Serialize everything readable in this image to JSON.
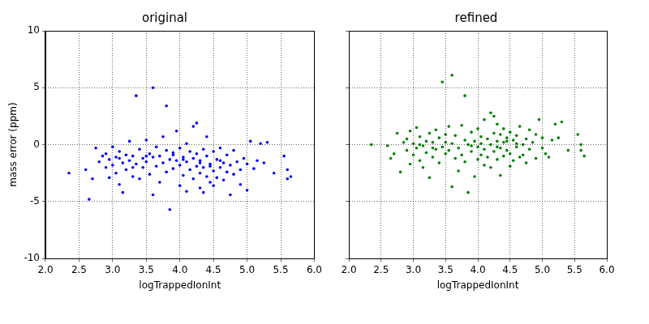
{
  "chart_data": [
    {
      "type": "scatter",
      "title": "original",
      "x_label": "logTrappedIonInt",
      "y_label": "mass error (ppm)",
      "color": "#0000ff",
      "marker": "circle",
      "grid": true,
      "xlim": [
        2,
        6
      ],
      "xticks": [
        {
          "value": 2,
          "label": "2.0"
        },
        {
          "value": 2.5,
          "label": "2.5"
        },
        {
          "value": 3,
          "label": "3.0"
        },
        {
          "value": 3.5,
          "label": "3.5"
        },
        {
          "value": 4,
          "label": "4.0"
        },
        {
          "value": 4.5,
          "label": "4.5"
        },
        {
          "value": 5,
          "label": "5.0"
        },
        {
          "value": 5.5,
          "label": "5.5"
        },
        {
          "value": 6,
          "label": "6.0"
        }
      ],
      "ylim": [
        -10,
        10
      ],
      "yticks": [
        -10,
        -5,
        0,
        5,
        10
      ],
      "x": [
        2.35,
        2.6,
        2.65,
        2.7,
        2.75,
        2.8,
        2.85,
        2.9,
        2.9,
        2.95,
        2.95,
        3.0,
        3.0,
        3.05,
        3.05,
        3.1,
        3.1,
        3.15,
        3.15,
        3.2,
        3.2,
        3.25,
        3.25,
        3.3,
        3.3,
        3.35,
        3.35,
        3.4,
        3.4,
        3.45,
        3.45,
        3.5,
        3.5,
        3.55,
        3.55,
        3.6,
        3.6,
        3.6,
        3.65,
        3.65,
        3.7,
        3.7,
        3.75,
        3.75,
        3.8,
        3.8,
        3.8,
        3.85,
        3.85,
        3.9,
        3.9,
        3.95,
        3.95,
        4.0,
        4.0,
        4.0,
        4.05,
        4.05,
        4.1,
        4.1,
        4.1,
        4.15,
        4.15,
        4.2,
        4.2,
        4.2,
        4.25,
        4.25,
        4.25,
        4.3,
        4.3,
        4.3,
        4.35,
        4.35,
        4.35,
        4.4,
        4.4,
        4.4,
        4.45,
        4.45,
        4.5,
        4.5,
        4.5,
        4.55,
        4.55,
        4.6,
        4.6,
        4.65,
        4.65,
        4.7,
        4.7,
        4.75,
        4.75,
        4.8,
        4.8,
        4.85,
        4.9,
        4.9,
        4.95,
        5.0,
        5.0,
        5.05,
        5.1,
        5.15,
        5.2,
        5.25,
        5.3,
        5.4,
        5.55,
        5.6,
        5.6,
        5.65,
        3.1,
        3.5,
        3.9,
        4.05,
        4.3,
        4.45,
        4.6,
        3.3
      ],
      "values": [
        -2.5,
        -2.2,
        -4.8,
        -3.0,
        -0.3,
        -1.5,
        -1.0,
        -2.0,
        -0.8,
        -2.9,
        -1.3,
        -1.8,
        -0.2,
        -2.5,
        -1.1,
        -3.5,
        -0.6,
        -1.6,
        -4.2,
        -0.9,
        -2.2,
        -1.4,
        0.3,
        -2.8,
        -1.0,
        4.3,
        -1.7,
        -0.4,
        -3.0,
        -1.2,
        -2.0,
        0.4,
        -1.5,
        -0.8,
        -2.6,
        5.0,
        -1.1,
        -4.4,
        -0.2,
        -1.9,
        -1.0,
        -3.3,
        0.7,
        -1.6,
        3.4,
        -0.5,
        -2.4,
        -5.7,
        -1.3,
        -0.9,
        -2.1,
        1.2,
        -1.4,
        -0.3,
        -1.8,
        -3.6,
        -1.1,
        -2.7,
        0.1,
        -1.5,
        -4.1,
        -0.6,
        -2.2,
        1.6,
        -1.2,
        -3.0,
        -0.8,
        -1.9,
        1.9,
        -2.5,
        -1.4,
        -3.8,
        -0.4,
        -2.0,
        -4.2,
        -1.0,
        -2.8,
        0.7,
        -1.7,
        -3.3,
        -0.6,
        -2.3,
        -3.6,
        -1.3,
        -2.9,
        -0.3,
        -2.0,
        -1.6,
        -3.1,
        -2.4,
        -0.9,
        -1.8,
        -4.4,
        -0.5,
        -2.6,
        -1.5,
        -2.2,
        -3.5,
        -1.2,
        -1.7,
        -4.0,
        0.3,
        -2.1,
        -1.4,
        0.1,
        -1.6,
        0.2,
        -2.5,
        -1.0,
        -2.2,
        -3.0,
        -2.8,
        -1.2,
        -1.0,
        -0.7,
        -1.3,
        -1.6,
        -1.9,
        -1.4,
        -2.0
      ]
    },
    {
      "type": "scatter",
      "title": "refined",
      "x_label": "logTrappedIonInt",
      "color": "#008000",
      "marker": "circle",
      "grid": true,
      "tick_labels": "x",
      "xlim": [
        2,
        6
      ],
      "xticks": [
        {
          "value": 2,
          "label": "2.0"
        },
        {
          "value": 2.5,
          "label": "2.5"
        },
        {
          "value": 3,
          "label": "3.0"
        },
        {
          "value": 3.5,
          "label": "3.5"
        },
        {
          "value": 4,
          "label": "4.0"
        },
        {
          "value": 4.5,
          "label": "4.5"
        },
        {
          "value": 5,
          "label": "5.0"
        },
        {
          "value": 5.5,
          "label": "5.5"
        },
        {
          "value": 6,
          "label": "6.0"
        }
      ],
      "ylim": [
        -10,
        10
      ],
      "yticks": [
        -10,
        -5,
        0,
        5,
        10
      ],
      "x": [
        2.35,
        2.6,
        2.65,
        2.7,
        2.75,
        2.8,
        2.85,
        2.9,
        2.9,
        2.95,
        2.95,
        3.0,
        3.0,
        3.05,
        3.05,
        3.1,
        3.1,
        3.15,
        3.15,
        3.2,
        3.2,
        3.25,
        3.25,
        3.3,
        3.3,
        3.35,
        3.35,
        3.4,
        3.4,
        3.45,
        3.45,
        3.5,
        3.5,
        3.55,
        3.55,
        3.6,
        3.6,
        3.6,
        3.65,
        3.65,
        3.7,
        3.7,
        3.75,
        3.75,
        3.8,
        3.8,
        3.8,
        3.85,
        3.85,
        3.9,
        3.9,
        3.95,
        3.95,
        4.0,
        4.0,
        4.0,
        4.05,
        4.05,
        4.1,
        4.1,
        4.1,
        4.15,
        4.15,
        4.2,
        4.2,
        4.2,
        4.25,
        4.25,
        4.25,
        4.3,
        4.3,
        4.3,
        4.35,
        4.35,
        4.35,
        4.4,
        4.4,
        4.4,
        4.45,
        4.45,
        4.5,
        4.5,
        4.5,
        4.55,
        4.55,
        4.6,
        4.6,
        4.65,
        4.65,
        4.7,
        4.7,
        4.75,
        4.75,
        4.8,
        4.8,
        4.85,
        4.9,
        4.9,
        4.95,
        5.0,
        5.0,
        5.05,
        5.1,
        5.15,
        5.2,
        5.25,
        5.3,
        5.4,
        5.55,
        5.6,
        5.6,
        5.65,
        3.1,
        3.5,
        3.9,
        4.05,
        4.3,
        4.45,
        4.6,
        3.3
      ],
      "values": [
        0.0,
        -0.1,
        -1.2,
        -0.8,
        1.0,
        -2.4,
        0.2,
        0.5,
        -0.5,
        -1.7,
        1.2,
        0.1,
        -0.9,
        1.5,
        -0.3,
        -1.4,
        0.7,
        -0.1,
        -2.0,
        0.3,
        -0.7,
        1.0,
        -2.9,
        0.2,
        -1.1,
        -0.4,
        1.3,
        0.6,
        -1.6,
        5.5,
        -0.2,
        0.9,
        -0.8,
        1.6,
        -0.5,
        6.1,
        -3.7,
        0.1,
        -1.2,
        0.8,
        -0.3,
        -2.3,
        1.7,
        -0.9,
        4.3,
        0.4,
        -1.5,
        -4.2,
        0.0,
        1.1,
        -0.6,
        -2.8,
        0.3,
        1.4,
        -0.2,
        -1.3,
        0.7,
        -0.9,
        2.2,
        -0.4,
        -1.8,
        0.5,
        -1.1,
        2.8,
        0.0,
        -2.0,
        1.0,
        -0.6,
        2.5,
        0.3,
        -1.3,
        1.8,
        -0.3,
        0.9,
        -2.7,
        0.2,
        -1.0,
        1.4,
        -0.5,
        0.6,
        1.1,
        -0.8,
        -1.9,
        0.4,
        -1.4,
        0.8,
        -0.2,
        1.6,
        -1.1,
        0.0,
        -0.9,
        0.5,
        -1.6,
        1.3,
        -0.4,
        0.2,
        -1.2,
        0.9,
        2.2,
        -0.3,
        0.6,
        -0.8,
        -1.1,
        0.4,
        1.8,
        0.6,
        2.0,
        -0.5,
        0.9,
        0.0,
        -0.5,
        -1.0,
        0.0,
        0.2,
        -0.1,
        0.1,
        -0.2,
        0.3,
        0.1,
        -0.3
      ]
    }
  ]
}
